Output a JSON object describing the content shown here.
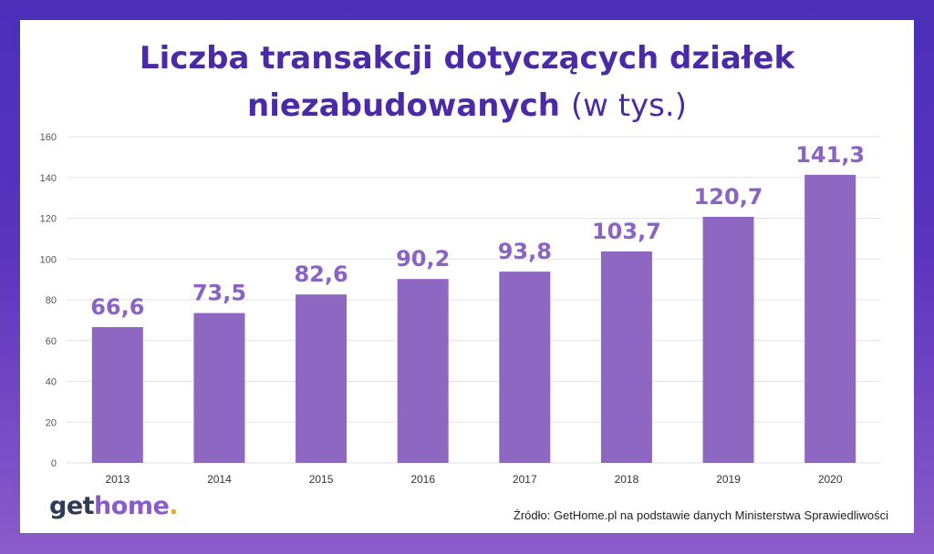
{
  "chart_data": {
    "type": "bar",
    "title_main": "Liczba transakcji dotyczących działek",
    "title_line2_bold": "niezabudowanych",
    "title_line2_light": "(w tys.)",
    "categories": [
      "2013",
      "2014",
      "2015",
      "2016",
      "2017",
      "2018",
      "2019",
      "2020"
    ],
    "values": [
      66.6,
      73.5,
      82.6,
      90.2,
      93.8,
      103.7,
      120.7,
      141.3
    ],
    "value_labels": [
      "66,6",
      "73,5",
      "82,6",
      "90,2",
      "93,8",
      "103,7",
      "120,7",
      "141,3"
    ],
    "yticks": [
      0,
      20,
      40,
      60,
      80,
      100,
      120,
      140,
      160
    ],
    "ylim": [
      0,
      160
    ],
    "grid": true,
    "bar_color": "#8e67c2",
    "label_color": "#8a63c4",
    "grid_color": "#e3e3e3"
  },
  "logo": {
    "get": "get",
    "home": "home",
    "dot": "."
  },
  "source": "Źródło: GetHome.pl na podstawie danych Ministerstwa Sprawiedliwości",
  "colors": {
    "title": "#4b2aa8",
    "frame_top": "#4a2fb8",
    "frame_bottom": "#8a5cc9"
  }
}
